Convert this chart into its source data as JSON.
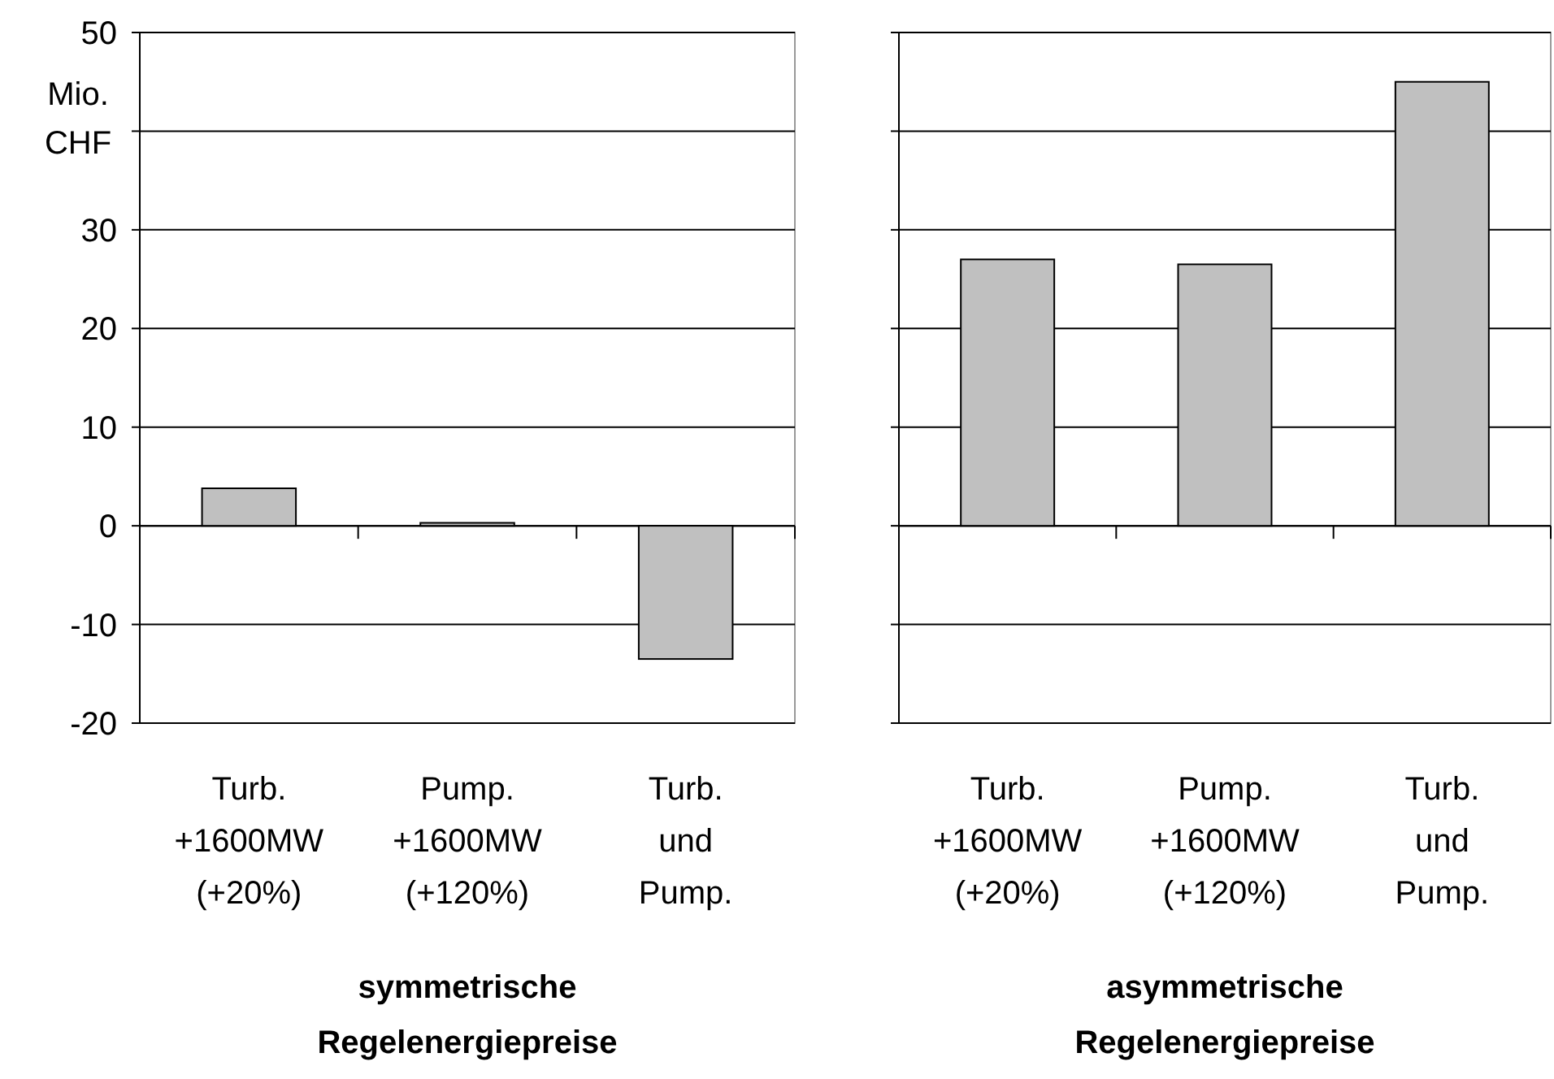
{
  "chart_data": [
    {
      "type": "bar",
      "categories": [
        "Turb.\n+1600MW\n(+20%)",
        "Pump.\n+1600MW\n(+120%)",
        "Turb.\nund\nPump."
      ],
      "values": [
        3.8,
        0.3,
        -13.5
      ],
      "color": "#c0c0c0",
      "ylim": [
        -20,
        50
      ],
      "yticks": [
        -20,
        -10,
        0,
        10,
        20,
        30,
        {
          "value": 40,
          "label": null
        },
        50
      ],
      "ylabel": "Mio.\nCHF",
      "xlabel": "symmetrische\nRegelenergiepreise",
      "grid": "y"
    },
    {
      "type": "bar",
      "categories": [
        "Turb.\n+1600MW\n(+20%)",
        "Pump.\n+1600MW\n(+120%)",
        "Turb.\nund\nPump."
      ],
      "values": [
        27.0,
        26.5,
        45.0
      ],
      "color": "#c0c0c0",
      "ylim": [
        -20,
        50
      ],
      "yticks": [
        -20,
        -10,
        0,
        10,
        20,
        30,
        {
          "value": 40,
          "label": null
        },
        50
      ],
      "xlabel": "asymmetrische\nRegelenergiepreise",
      "grid": "y",
      "tick_labels": "x"
    }
  ]
}
